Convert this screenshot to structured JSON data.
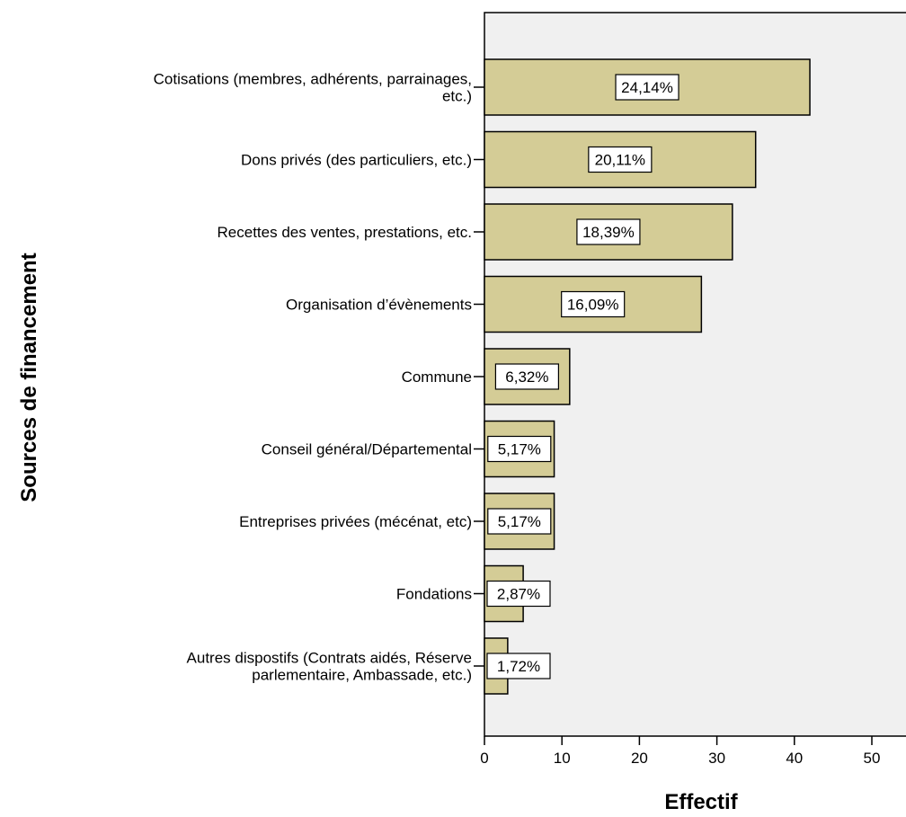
{
  "chart_data": {
    "type": "bar",
    "orientation": "horizontal",
    "xlabel": "Effectif",
    "ylabel": "Sources de financement",
    "xlim": [
      0,
      55
    ],
    "xticks": [
      0,
      10,
      20,
      30,
      40,
      50
    ],
    "categories": [
      [
        "Cotisations (membres, adhérents, parrainages,",
        "etc.)"
      ],
      [
        "Dons privés (des particuliers, etc.)"
      ],
      [
        "Recettes des ventes, prestations, etc."
      ],
      [
        "Organisation d’évènements"
      ],
      [
        "Commune"
      ],
      [
        "Conseil général/Départemental"
      ],
      [
        "Entreprises privées (mécénat, etc)"
      ],
      [
        "Fondations"
      ],
      [
        "Autres dispostifs (Contrats aidés, Réserve",
        "parlementaire, Ambassade, etc.)"
      ]
    ],
    "values": [
      42,
      35,
      32,
      28,
      11,
      9,
      9,
      5,
      3
    ],
    "data_labels": [
      "24,14%",
      "20,11%",
      "18,39%",
      "16,09%",
      "6,32%",
      "5,17%",
      "5,17%",
      "2,87%",
      "1,72%"
    ],
    "colors": {
      "bar": "#d4cc96",
      "plot_bg": "#f0f0f0",
      "stroke": "#000000"
    },
    "grid": false,
    "legend": "none"
  }
}
